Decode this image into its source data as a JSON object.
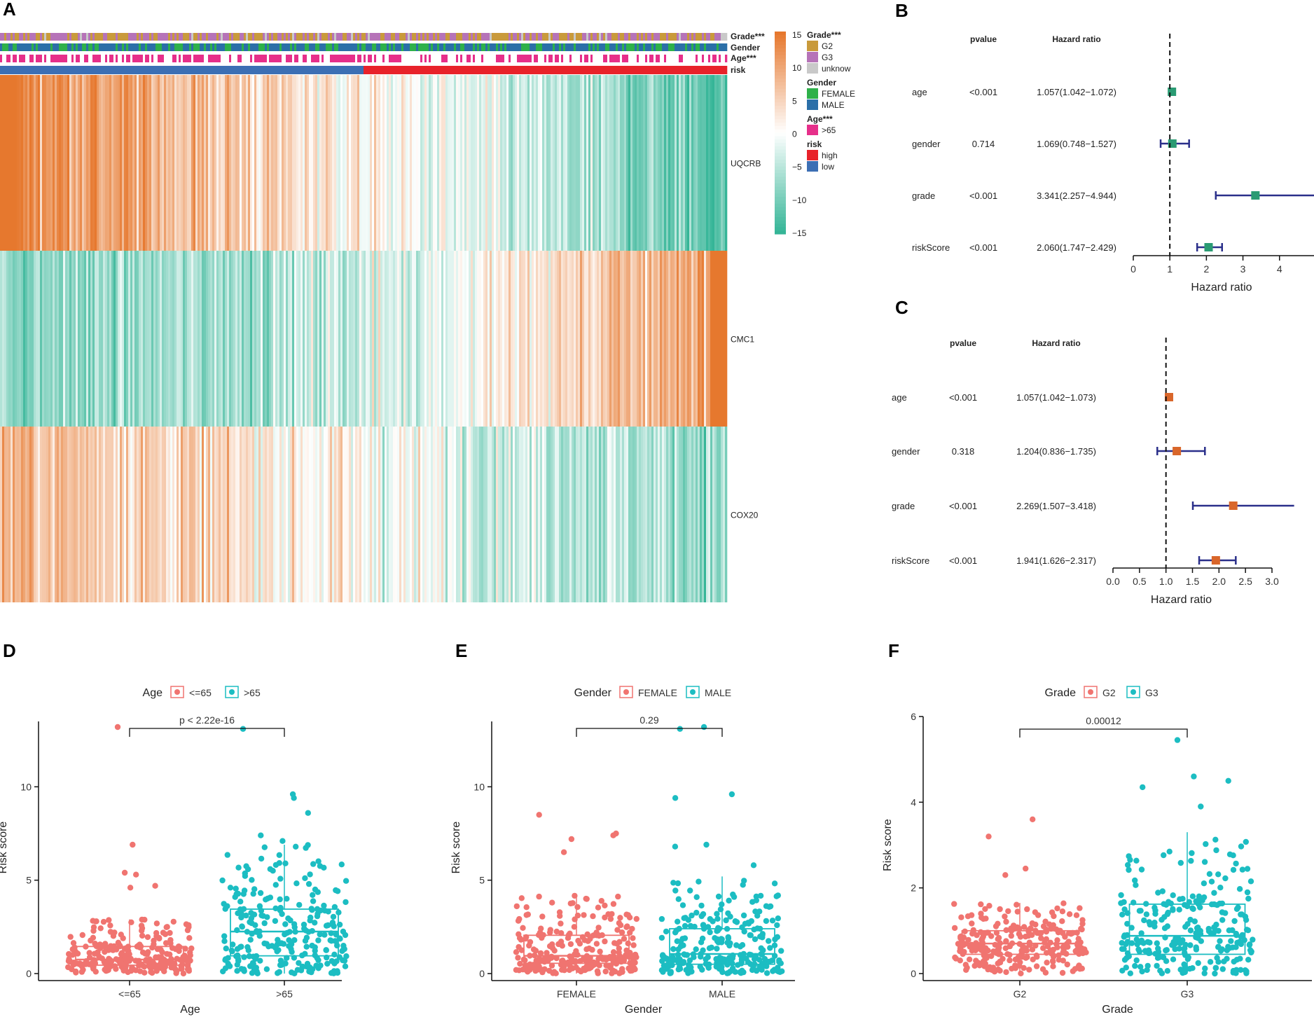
{
  "panels": {
    "A": "A",
    "B": "B",
    "C": "C",
    "D": "D",
    "E": "E",
    "F": "F"
  },
  "colors": {
    "orange": "#e6782e",
    "teal": "#35b597",
    "white": "#ffffff",
    "grade_g2": "#c99a3b",
    "grade_g3": "#b673b8",
    "grade_unknow": "#c9c9c9",
    "gender_female": "#2eb14a",
    "gender_male": "#2b6fa8",
    "age_gt65": "#e62f8a",
    "risk_high": "#e8222a",
    "risk_low": "#3c6fb4",
    "forest_b_box": "#2a9b73",
    "forest_c_box": "#d9662a",
    "ci_line": "#2a2f8a",
    "pink": "#f07470",
    "cyan": "#1cbdc2"
  },
  "chart_data": [
    {
      "type": "heatmap",
      "panel": "A",
      "genes": [
        "UQCRB",
        "CMC1",
        "COX20"
      ],
      "annotation_tracks": [
        "Grade***",
        "Gender",
        "Age***",
        "risk"
      ],
      "colorbar": {
        "min": -15,
        "max": 15,
        "ticks": [
          "15",
          "10",
          "5",
          "0",
          "−5",
          "−10",
          "−15"
        ]
      },
      "legend": [
        {
          "title": "Grade***",
          "items": [
            "G2",
            "G3",
            "unknow"
          ]
        },
        {
          "title": "Gender",
          "items": [
            "FEMALE",
            "MALE"
          ]
        },
        {
          "title": "Age***",
          "items": [
            ">65"
          ]
        },
        {
          "title": "risk",
          "items": [
            "high",
            "low"
          ]
        }
      ]
    },
    {
      "type": "forest",
      "panel": "B",
      "header": {
        "pvalue": "pvalue",
        "hr": "Hazard ratio"
      },
      "rows": [
        {
          "label": "age",
          "pvalue": "<0.001",
          "hr_text": "1.057(1.042−1.072)",
          "hr": 1.057,
          "lo": 1.042,
          "hi": 1.072
        },
        {
          "label": "gender",
          "pvalue": "0.714",
          "hr_text": "1.069(0.748−1.527)",
          "hr": 1.069,
          "lo": 0.748,
          "hi": 1.527
        },
        {
          "label": "grade",
          "pvalue": "<0.001",
          "hr_text": "3.341(2.257−4.944)",
          "hr": 3.341,
          "lo": 2.257,
          "hi": 4.944
        },
        {
          "label": "riskScore",
          "pvalue": "<0.001",
          "hr_text": "2.060(1.747−2.429)",
          "hr": 2.06,
          "lo": 1.747,
          "hi": 2.429
        }
      ],
      "xlim": [
        0,
        4.944
      ],
      "ticks": [
        "0",
        "1",
        "2",
        "3",
        "4"
      ],
      "xlabel": "Hazard ratio",
      "ref": 1
    },
    {
      "type": "forest",
      "panel": "C",
      "header": {
        "pvalue": "pvalue",
        "hr": "Hazard ratio"
      },
      "rows": [
        {
          "label": "age",
          "pvalue": "<0.001",
          "hr_text": "1.057(1.042−1.073)",
          "hr": 1.057,
          "lo": 1.042,
          "hi": 1.073
        },
        {
          "label": "gender",
          "pvalue": "0.318",
          "hr_text": "1.204(0.836−1.735)",
          "hr": 1.204,
          "lo": 0.836,
          "hi": 1.735
        },
        {
          "label": "grade",
          "pvalue": "<0.001",
          "hr_text": "2.269(1.507−3.418)",
          "hr": 2.269,
          "lo": 1.507,
          "hi": 3.418
        },
        {
          "label": "riskScore",
          "pvalue": "<0.001",
          "hr_text": "1.941(1.626−2.317)",
          "hr": 1.941,
          "lo": 1.626,
          "hi": 2.317
        }
      ],
      "xlim": [
        0,
        3.0
      ],
      "ticks": [
        "0.0",
        "0.5",
        "1.0",
        "1.5",
        "2.0",
        "2.5",
        "3.0"
      ],
      "xlabel": "Hazard ratio",
      "ref": 1
    },
    {
      "type": "box",
      "panel": "D",
      "legend_title": "Age",
      "groups": [
        "<=65",
        ">65"
      ],
      "xlabel": "Age",
      "ylabel": "Risk score",
      "ylim": [
        0,
        13.5
      ],
      "yticks": [
        "0",
        "5",
        "10"
      ],
      "pvalue": "p < 2.22e-16",
      "boxes": [
        {
          "q1": 0.45,
          "med": 0.75,
          "q3": 1.45,
          "wlo": 0,
          "whi": 2.9
        },
        {
          "q1": 0.95,
          "med": 2.25,
          "q3": 3.45,
          "wlo": 0,
          "whi": 6.9
        }
      ],
      "outliers": [
        [
          13.2,
          6.9,
          5.4,
          5.3,
          4.7,
          4.6
        ],
        [
          13.1,
          9.6,
          9.4,
          8.6,
          7.4,
          7.1
        ]
      ]
    },
    {
      "type": "box",
      "panel": "E",
      "legend_title": "Gender",
      "groups": [
        "FEMALE",
        "MALE"
      ],
      "xlabel": "Gender",
      "ylabel": "Risk score",
      "ylim": [
        0,
        13.5
      ],
      "yticks": [
        "0",
        "5",
        "10"
      ],
      "pvalue": "0.29",
      "boxes": [
        {
          "q1": 0.55,
          "med": 0.95,
          "q3": 2.05,
          "wlo": 0,
          "whi": 4.2
        },
        {
          "q1": 0.5,
          "med": 1.05,
          "q3": 2.4,
          "wlo": 0,
          "whi": 5.2
        }
      ],
      "outliers": [
        [
          8.5,
          7.5,
          7.4,
          7.2,
          6.5
        ],
        [
          13.2,
          13.1,
          9.6,
          9.4,
          6.9,
          6.8,
          5.8
        ]
      ]
    },
    {
      "type": "box",
      "panel": "F",
      "legend_title": "Grade",
      "groups": [
        "G2",
        "G3"
      ],
      "xlabel": "Grade",
      "ylabel": "Risk score",
      "ylim": [
        0,
        6
      ],
      "yticks": [
        "0",
        "2",
        "4",
        "6"
      ],
      "pvalue": "0.00012",
      "boxes": [
        {
          "q1": 0.45,
          "med": 0.7,
          "q3": 1.0,
          "wlo": 0,
          "whi": 1.65
        },
        {
          "q1": 0.45,
          "med": 0.88,
          "q3": 1.62,
          "wlo": 0,
          "whi": 3.3
        }
      ],
      "outliers": [
        [
          3.6,
          3.2,
          2.45,
          2.3
        ],
        [
          5.45,
          4.6,
          4.5,
          4.35,
          3.9
        ]
      ]
    }
  ]
}
